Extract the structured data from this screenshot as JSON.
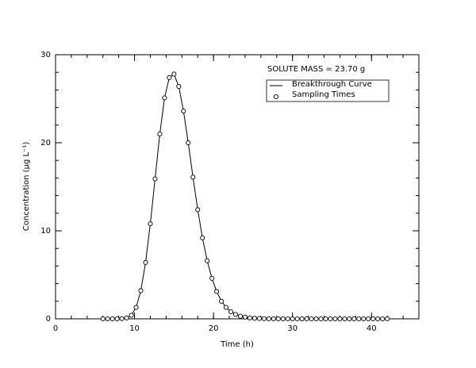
{
  "chart_data": {
    "type": "line",
    "xlabel": "Time (h)",
    "ylabel": "Concentration (μg L⁻¹)",
    "annotation": "SOLUTE MASS =   23.70 g",
    "xlim": [
      0,
      46
    ],
    "ylim": [
      0,
      30
    ],
    "xticks": [
      0,
      10,
      20,
      30,
      40
    ],
    "yticks": [
      0,
      10,
      20,
      30
    ],
    "legend": "upper right",
    "x": [
      6,
      6.6,
      7.2,
      7.8,
      8.4,
      9,
      9.6,
      10.2,
      10.8,
      11.4,
      12,
      12.6,
      13.2,
      13.8,
      14.4,
      15,
      15.6,
      16.2,
      16.8,
      17.4,
      18,
      18.6,
      19.2,
      19.8,
      20.4,
      21,
      21.6,
      22.2,
      22.8,
      23.4,
      24,
      24.6,
      25.2,
      25.8,
      26.4,
      27,
      27.6,
      28.2,
      28.8,
      29.4,
      30,
      30.6,
      31.2,
      31.8,
      32.4,
      33,
      33.6,
      34.2,
      34.8,
      35.4,
      36,
      36.6,
      37.2,
      37.8,
      38.4,
      39,
      39.6,
      40.2,
      40.8,
      41.4,
      42
    ],
    "series": [
      {
        "name": "Breakthrough Curve",
        "color": "#000000",
        "marker": "none",
        "values": [
          0,
          0,
          0,
          0,
          0.02,
          0.1,
          0.4,
          1.3,
          3.2,
          6.4,
          10.8,
          15.9,
          21.0,
          25.1,
          27.4,
          27.8,
          26.4,
          23.6,
          20.0,
          16.1,
          12.4,
          9.2,
          6.6,
          4.6,
          3.1,
          2.0,
          1.3,
          0.8,
          0.5,
          0.3,
          0.2,
          0.1,
          0.06,
          0.04,
          0.02,
          0.01,
          0.01,
          0,
          0,
          0,
          0,
          0,
          0,
          0,
          0,
          0,
          0,
          0,
          0,
          0,
          0,
          0,
          0,
          0,
          0,
          0,
          0,
          0,
          0,
          0,
          0
        ]
      },
      {
        "name": "Sampling Times",
        "color": "#000000",
        "marker": "circle",
        "values": [
          0,
          0,
          0,
          0,
          0.02,
          0.1,
          0.4,
          1.3,
          3.2,
          6.4,
          10.8,
          15.9,
          21.0,
          25.1,
          27.4,
          27.8,
          26.4,
          23.6,
          20.0,
          16.1,
          12.4,
          9.2,
          6.6,
          4.6,
          3.1,
          2.0,
          1.3,
          0.8,
          0.5,
          0.3,
          0.2,
          0.1,
          0.06,
          0.04,
          0.02,
          0.01,
          0.01,
          0,
          0,
          0,
          0,
          0,
          0,
          0,
          0,
          0,
          0,
          0,
          0,
          0,
          0,
          0,
          0,
          0,
          0,
          0,
          0,
          0,
          0,
          0,
          0
        ]
      }
    ]
  }
}
